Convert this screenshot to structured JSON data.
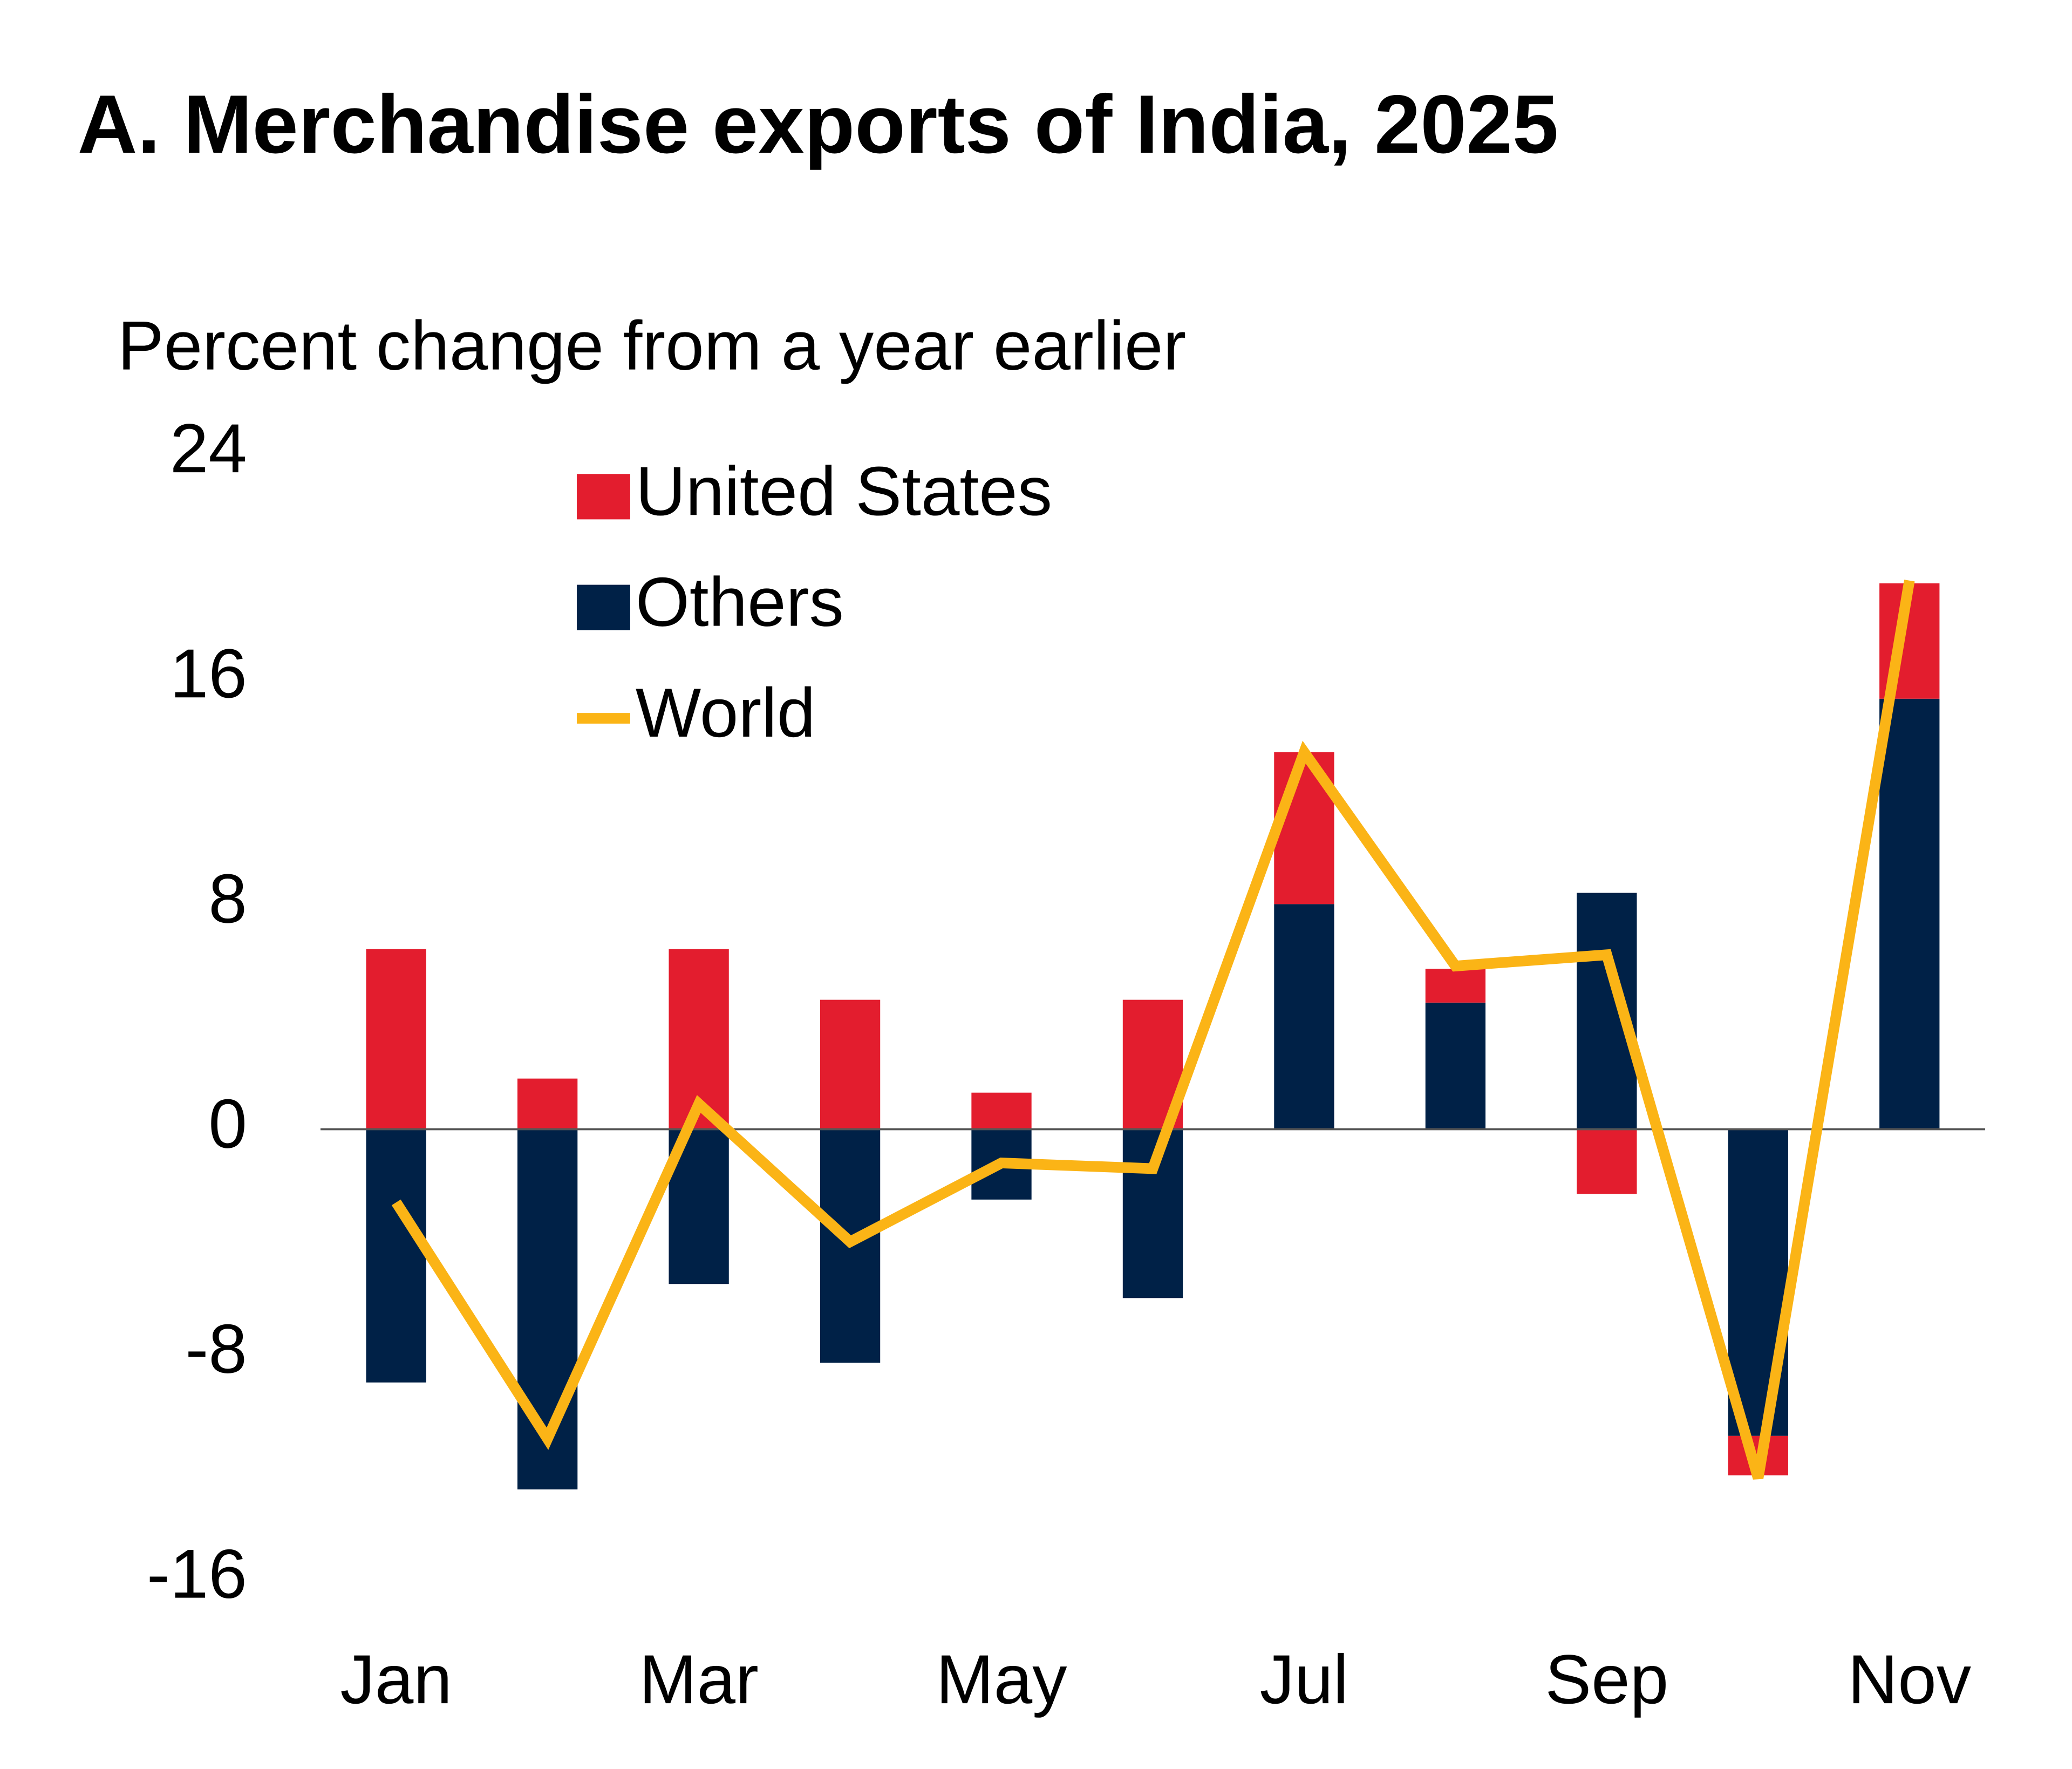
{
  "chart_data": {
    "type": "bar",
    "stacked": true,
    "title": "A. Merchandise exports of India, 2025",
    "y_label": "Percent change from a year earlier",
    "categories": [
      "Jan",
      null,
      "Mar",
      null,
      "May",
      null,
      "Jul",
      null,
      "Sep",
      null,
      "Nov"
    ],
    "series": [
      {
        "name": "United States",
        "type": "bar",
        "color": "#e31d2e",
        "values": [
          6.4,
          1.8,
          6.4,
          4.6,
          1.3,
          4.6,
          5.4,
          1.2,
          -2.3,
          -1.4,
          4.1
        ]
      },
      {
        "name": "Others",
        "type": "bar",
        "color": "#002147",
        "values": [
          -9.0,
          -12.8,
          -5.5,
          -8.3,
          -2.5,
          -6.0,
          8.0,
          4.5,
          8.4,
          -10.9,
          15.3
        ]
      },
      {
        "name": "World",
        "type": "line",
        "color": "#fbb416",
        "values": [
          -2.6,
          -11.0,
          0.9,
          -4.0,
          -1.2,
          -1.4,
          13.4,
          5.8,
          6.2,
          -12.4,
          19.5
        ]
      }
    ],
    "ylim": [
      -16,
      24
    ],
    "yticks": [
      -16,
      -8,
      0,
      8,
      16,
      24
    ],
    "grid": false,
    "legend_position": "upper left"
  }
}
